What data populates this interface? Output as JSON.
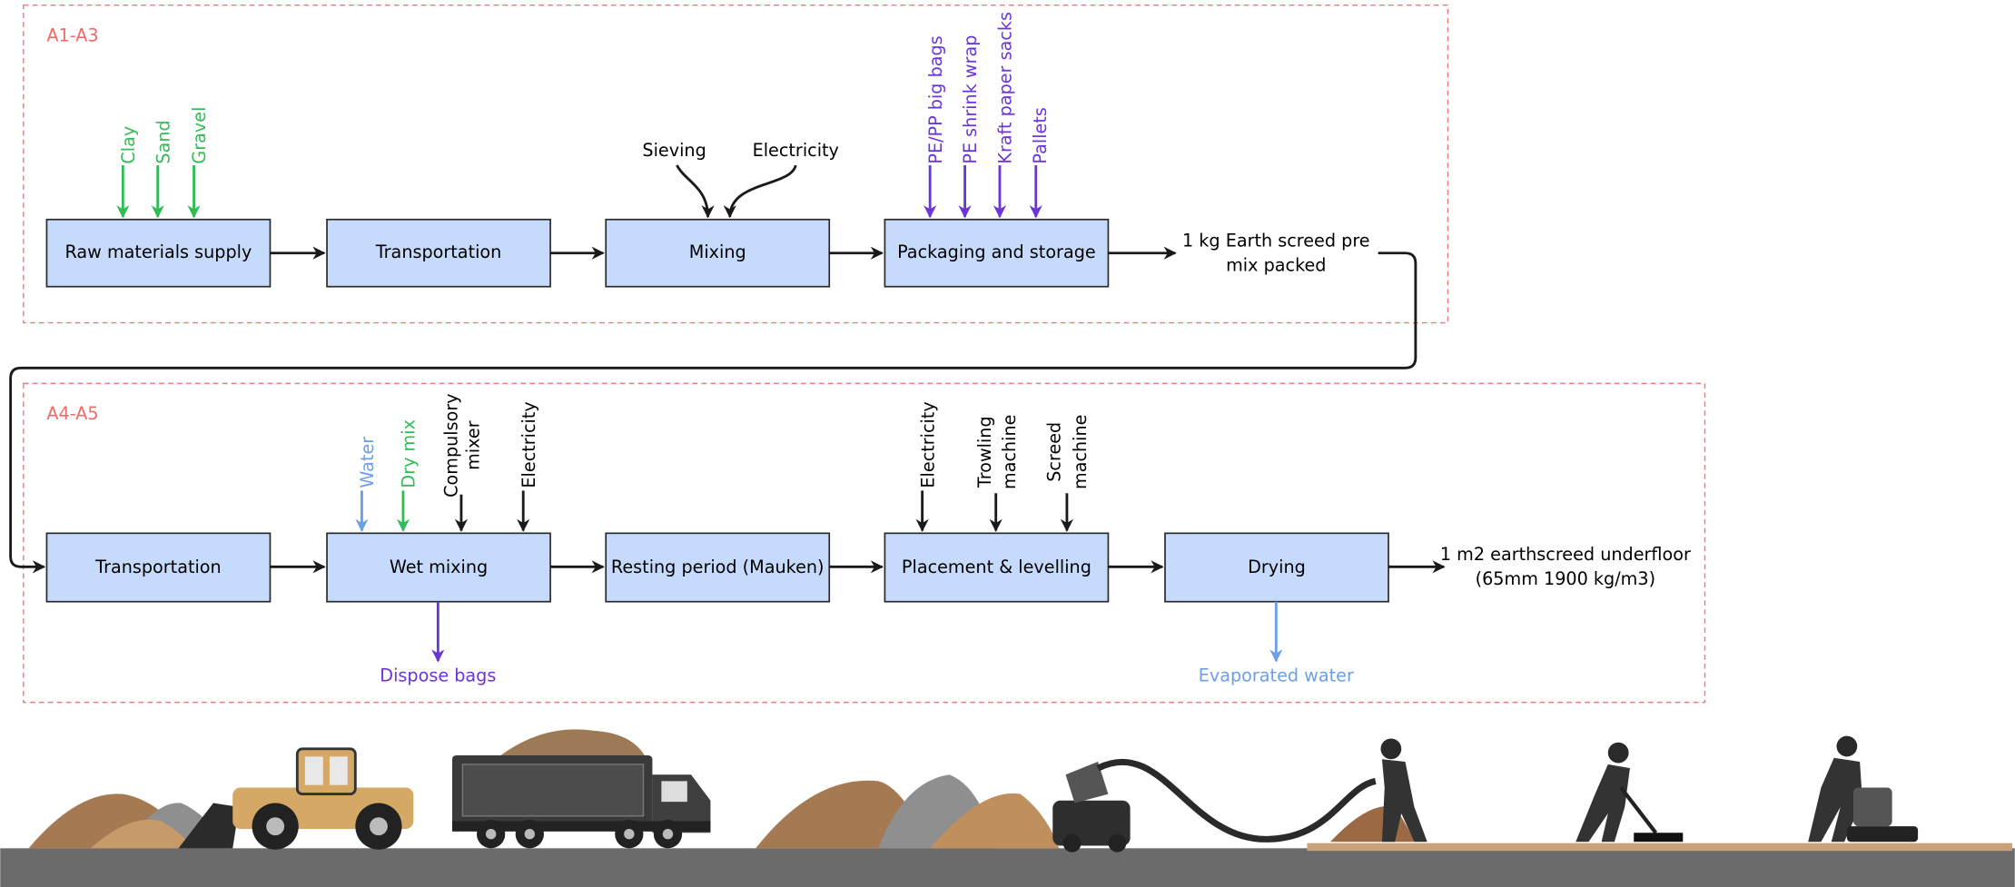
{
  "groups": [
    {
      "label": "A1-A3"
    },
    {
      "label": "A4-A5"
    }
  ],
  "row1": {
    "nodes": [
      "Raw materials supply",
      "Transportation",
      "Mixing",
      "Packaging and storage"
    ],
    "product": [
      "1 kg Earth screed pre",
      "mix packed"
    ]
  },
  "row1_inputs": {
    "raw": [
      "Clay",
      "Sand",
      "Gravel"
    ],
    "mixing": [
      "Sieving",
      "Electricity"
    ],
    "packaging": [
      "PE/PP big bags",
      "PE shrink wrap",
      "Kraft paper sacks",
      "Pallets"
    ]
  },
  "row2": {
    "nodes": [
      "Transportation",
      "Wet mixing",
      "Resting period (Mauken)",
      "Placement & levelling",
      "Drying"
    ],
    "product": [
      "1 m2 earthscreed underfloor",
      "(65mm 1900 kg/m3)"
    ]
  },
  "row2_inputs": {
    "wet_mixing": [
      "Water",
      "Dry mix",
      [
        "Compulsory",
        "mixer"
      ],
      "Electricity"
    ],
    "placement": [
      "Electricity",
      [
        "Trowling",
        "machine"
      ],
      [
        "Screed",
        "machine"
      ]
    ]
  },
  "row2_outputs": {
    "wet_mixing": "Dispose bags",
    "drying": "Evaporated water"
  }
}
